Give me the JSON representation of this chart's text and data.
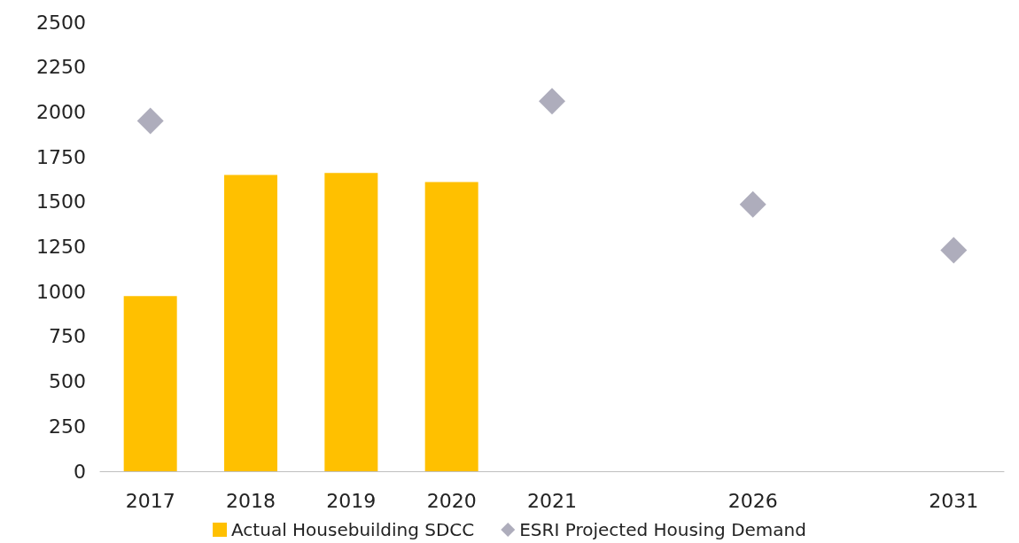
{
  "chart_data": {
    "type": "bar",
    "categories": [
      "2017",
      "2018",
      "2019",
      "2020",
      "2021",
      null,
      "2026",
      null,
      "2031"
    ],
    "series": [
      {
        "name": "Actual Housebuilding SDCC",
        "color": "#ffc000",
        "values": [
          975,
          1650,
          1660,
          1610,
          null,
          null,
          null,
          null,
          null
        ]
      },
      {
        "name": "ESRI Projected Housing Demand",
        "type": "scatter",
        "color": "#9a99ab",
        "values": [
          1950,
          null,
          null,
          null,
          2060,
          null,
          1485,
          null,
          1230
        ],
        "marker": "diamond"
      }
    ],
    "ylim": [
      0,
      2500
    ],
    "yticks": [
      0,
      250,
      500,
      750,
      1000,
      1250,
      1500,
      1750,
      2000,
      2250,
      2500
    ],
    "grid": false,
    "legend": "bottom"
  }
}
